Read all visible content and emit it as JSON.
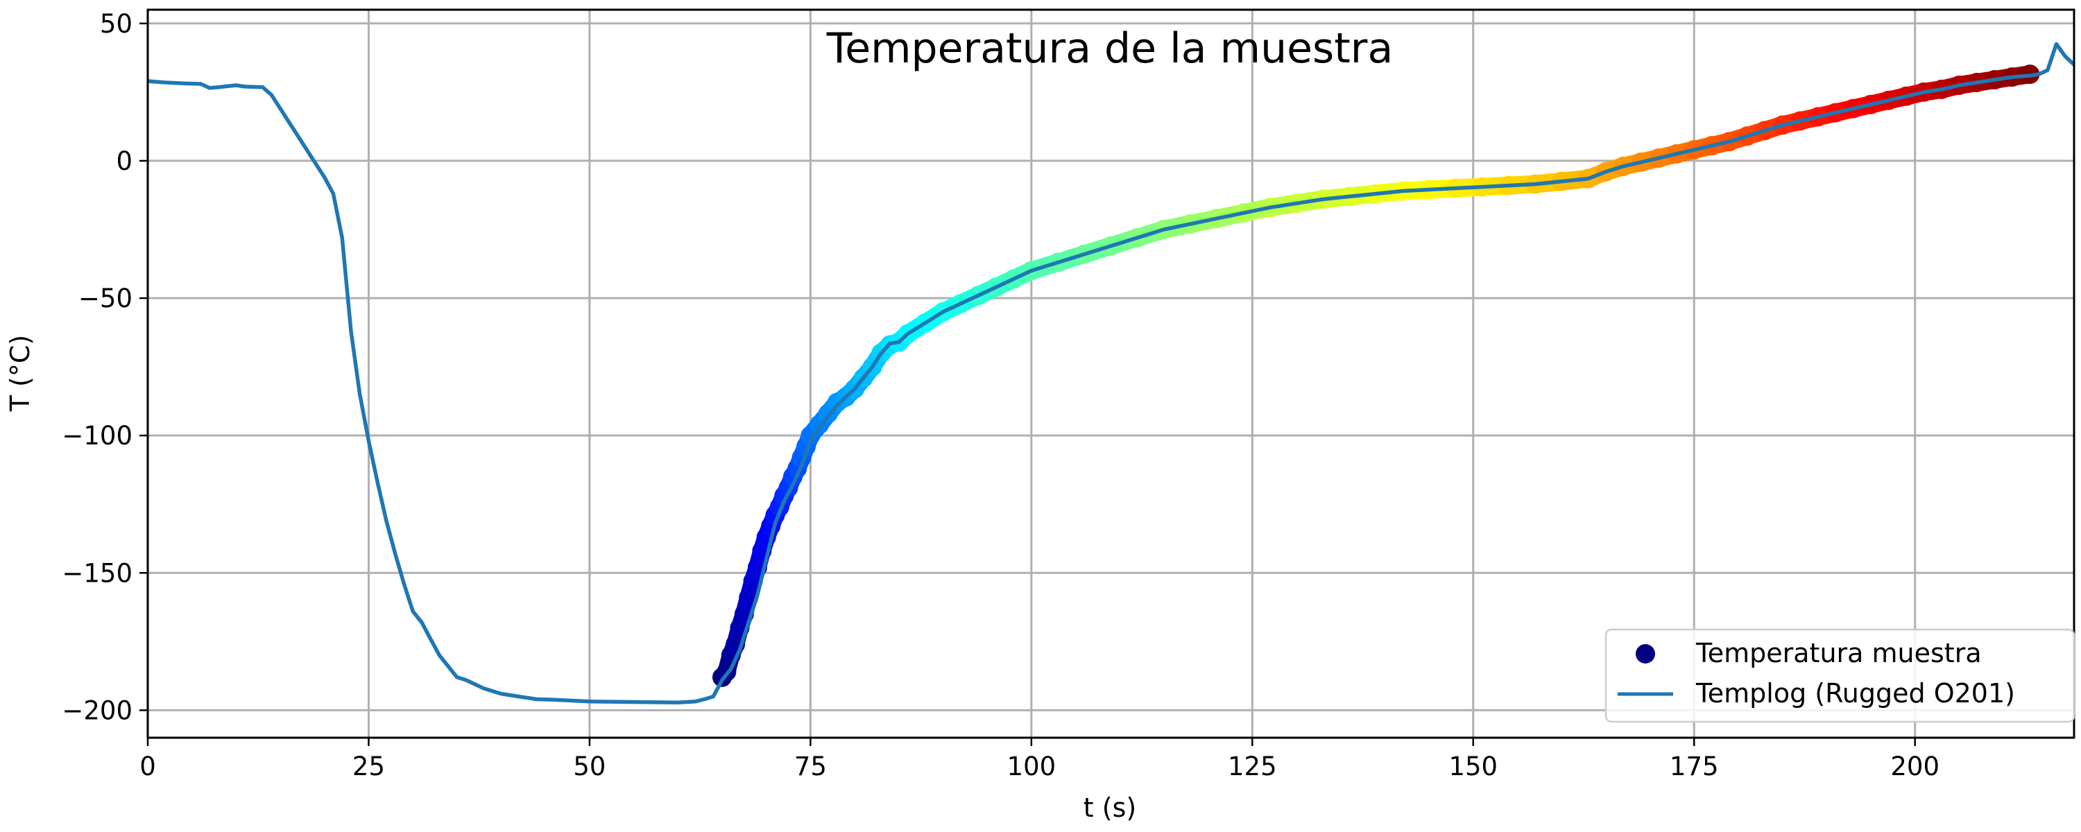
{
  "chart_data": {
    "type": "scatter",
    "title": "Temperatura de la muestra",
    "xlabel": "t (s)",
    "ylabel": "T (°C)",
    "xlim": [
      0,
      218
    ],
    "ylim": [
      -210,
      55
    ],
    "xticks": [
      0,
      25,
      50,
      75,
      100,
      125,
      150,
      175,
      200
    ],
    "yticks": [
      50,
      0,
      -50,
      -100,
      -150,
      -200
    ],
    "xtick_labels": [
      "0",
      "25",
      "50",
      "75",
      "100",
      "125",
      "150",
      "175",
      "200"
    ],
    "ytick_labels": [
      "50",
      "0",
      "−50",
      "−100",
      "−150",
      "−200"
    ],
    "grid": true,
    "legend_position": "lower-right",
    "series": [
      {
        "name": "Temperatura muestra",
        "kind": "scatter",
        "colormap": "jet",
        "legend_color": "#000080",
        "points": [
          [
            65,
            -188
          ],
          [
            65.5,
            -186
          ],
          [
            66,
            -180
          ],
          [
            66.5,
            -176
          ],
          [
            67,
            -170
          ],
          [
            67.5,
            -165
          ],
          [
            68,
            -159
          ],
          [
            68.5,
            -153
          ],
          [
            69,
            -148
          ],
          [
            69.5,
            -142
          ],
          [
            70,
            -137
          ],
          [
            70.5,
            -133
          ],
          [
            71,
            -129
          ],
          [
            71.5,
            -126
          ],
          [
            72,
            -122
          ],
          [
            72.5,
            -119
          ],
          [
            73,
            -115
          ],
          [
            73.5,
            -112
          ],
          [
            74,
            -108
          ],
          [
            74.5,
            -104
          ],
          [
            75,
            -100
          ],
          [
            76,
            -96
          ],
          [
            77,
            -92
          ],
          [
            78,
            -88
          ],
          [
            79,
            -86
          ],
          [
            80,
            -83
          ],
          [
            81,
            -79
          ],
          [
            82,
            -75
          ],
          [
            83,
            -70
          ],
          [
            84,
            -67
          ],
          [
            85,
            -66
          ],
          [
            86,
            -63
          ],
          [
            88,
            -59
          ],
          [
            90,
            -55
          ],
          [
            92,
            -52
          ],
          [
            94,
            -49
          ],
          [
            96,
            -46
          ],
          [
            98,
            -43
          ],
          [
            100,
            -40
          ],
          [
            103,
            -37
          ],
          [
            106,
            -34
          ],
          [
            109,
            -31
          ],
          [
            112,
            -28
          ],
          [
            115,
            -25
          ],
          [
            118,
            -23
          ],
          [
            121,
            -21
          ],
          [
            124,
            -19
          ],
          [
            127,
            -17
          ],
          [
            130,
            -15.5
          ],
          [
            133,
            -14
          ],
          [
            136,
            -13
          ],
          [
            139,
            -12
          ],
          [
            142,
            -11
          ],
          [
            145,
            -10.5
          ],
          [
            148,
            -10
          ],
          [
            151,
            -9.5
          ],
          [
            154,
            -9
          ],
          [
            157,
            -8.5
          ],
          [
            160,
            -7.5
          ],
          [
            163,
            -6.5
          ],
          [
            165,
            -4
          ],
          [
            167,
            -2
          ],
          [
            169,
            -0.5
          ],
          [
            171,
            1
          ],
          [
            173,
            2.5
          ],
          [
            175,
            4
          ],
          [
            177,
            5.5
          ],
          [
            179,
            7
          ],
          [
            181,
            9
          ],
          [
            183,
            11
          ],
          [
            185,
            13
          ],
          [
            187,
            14.5
          ],
          [
            189,
            16
          ],
          [
            191,
            17.5
          ],
          [
            193,
            19
          ],
          [
            195,
            20.5
          ],
          [
            197,
            22
          ],
          [
            199,
            23.5
          ],
          [
            201,
            25
          ],
          [
            203,
            26
          ],
          [
            205,
            27.5
          ],
          [
            207,
            28.5
          ],
          [
            209,
            29.5
          ],
          [
            211,
            30.5
          ],
          [
            213,
            31.5
          ]
        ]
      },
      {
        "name": "Templog (Rugged O201)",
        "kind": "line",
        "color": "#1f77b4",
        "points": [
          [
            0,
            29
          ],
          [
            2,
            28.5
          ],
          [
            4,
            28.2
          ],
          [
            6,
            28
          ],
          [
            7,
            26.5
          ],
          [
            8,
            26.8
          ],
          [
            10,
            27.5
          ],
          [
            11,
            27
          ],
          [
            13,
            26.8
          ],
          [
            14,
            24
          ],
          [
            15,
            19
          ],
          [
            16,
            14
          ],
          [
            17,
            9
          ],
          [
            18,
            4
          ],
          [
            19,
            -1
          ],
          [
            20,
            -6
          ],
          [
            21,
            -12
          ],
          [
            22,
            -28
          ],
          [
            23,
            -62
          ],
          [
            24,
            -85
          ],
          [
            25,
            -102
          ],
          [
            26,
            -117
          ],
          [
            27,
            -131
          ],
          [
            28,
            -143
          ],
          [
            29,
            -154
          ],
          [
            30,
            -164
          ],
          [
            31,
            -168
          ],
          [
            32,
            -174
          ],
          [
            33,
            -180
          ],
          [
            34,
            -184
          ],
          [
            35,
            -188
          ],
          [
            36,
            -189
          ],
          [
            38,
            -192
          ],
          [
            40,
            -194
          ],
          [
            42,
            -195
          ],
          [
            44,
            -196
          ],
          [
            46,
            -196.2
          ],
          [
            48,
            -196.5
          ],
          [
            50,
            -196.8
          ],
          [
            55,
            -197
          ],
          [
            60,
            -197.2
          ],
          [
            62,
            -196.8
          ],
          [
            63,
            -196
          ],
          [
            64,
            -195
          ],
          [
            65,
            -189
          ],
          [
            66,
            -185
          ],
          [
            67,
            -178
          ],
          [
            68,
            -168
          ],
          [
            69,
            -158
          ],
          [
            70,
            -145
          ],
          [
            71,
            -132
          ],
          [
            72,
            -124
          ],
          [
            73,
            -118
          ],
          [
            74,
            -111
          ],
          [
            75,
            -102
          ],
          [
            76,
            -97
          ],
          [
            77,
            -93
          ],
          [
            78,
            -89
          ],
          [
            79,
            -86
          ],
          [
            80,
            -83
          ],
          [
            81,
            -79
          ],
          [
            82,
            -75
          ],
          [
            83,
            -70
          ],
          [
            84,
            -66.5
          ],
          [
            85,
            -66
          ],
          [
            86,
            -63
          ],
          [
            88,
            -59
          ],
          [
            90,
            -55
          ],
          [
            92,
            -52
          ],
          [
            94,
            -49
          ],
          [
            96,
            -46
          ],
          [
            98,
            -43
          ],
          [
            100,
            -40
          ],
          [
            103,
            -37
          ],
          [
            106,
            -34
          ],
          [
            109,
            -31
          ],
          [
            112,
            -28
          ],
          [
            115,
            -25
          ],
          [
            118,
            -23
          ],
          [
            121,
            -21
          ],
          [
            124,
            -19
          ],
          [
            127,
            -17
          ],
          [
            130,
            -15.5
          ],
          [
            133,
            -14
          ],
          [
            136,
            -13
          ],
          [
            139,
            -12
          ],
          [
            142,
            -11
          ],
          [
            145,
            -10.5
          ],
          [
            148,
            -10
          ],
          [
            151,
            -9.5
          ],
          [
            154,
            -9
          ],
          [
            157,
            -8.5
          ],
          [
            160,
            -7.5
          ],
          [
            163,
            -6.5
          ],
          [
            165,
            -4
          ],
          [
            167,
            -2
          ],
          [
            169,
            -0.5
          ],
          [
            171,
            1
          ],
          [
            173,
            2.5
          ],
          [
            175,
            4
          ],
          [
            177,
            5.5
          ],
          [
            179,
            7
          ],
          [
            181,
            9
          ],
          [
            183,
            11
          ],
          [
            185,
            13
          ],
          [
            187,
            14.5
          ],
          [
            189,
            16
          ],
          [
            191,
            17.5
          ],
          [
            193,
            19
          ],
          [
            195,
            20.5
          ],
          [
            197,
            22
          ],
          [
            199,
            23.5
          ],
          [
            201,
            25
          ],
          [
            203,
            26
          ],
          [
            205,
            27.5
          ],
          [
            207,
            28.5
          ],
          [
            209,
            29.5
          ],
          [
            211,
            30.5
          ],
          [
            213,
            31
          ],
          [
            214,
            31.5
          ],
          [
            215,
            33
          ],
          [
            216,
            42.5
          ],
          [
            217,
            38
          ],
          [
            218,
            35
          ]
        ]
      }
    ]
  }
}
